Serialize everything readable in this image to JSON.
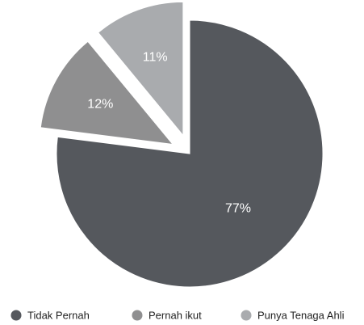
{
  "chart_data": {
    "type": "pie",
    "categories": [
      "Tidak Pernah",
      "Pernah ikut",
      "Punya Tenaga Ahli"
    ],
    "values": [
      77,
      12,
      11
    ],
    "value_labels": [
      "77%",
      "12%",
      "11%"
    ],
    "colors": [
      "#55585d",
      "#8f8f90",
      "#a9abae"
    ],
    "explode": [
      false,
      true,
      true
    ],
    "legend": "bottom"
  }
}
